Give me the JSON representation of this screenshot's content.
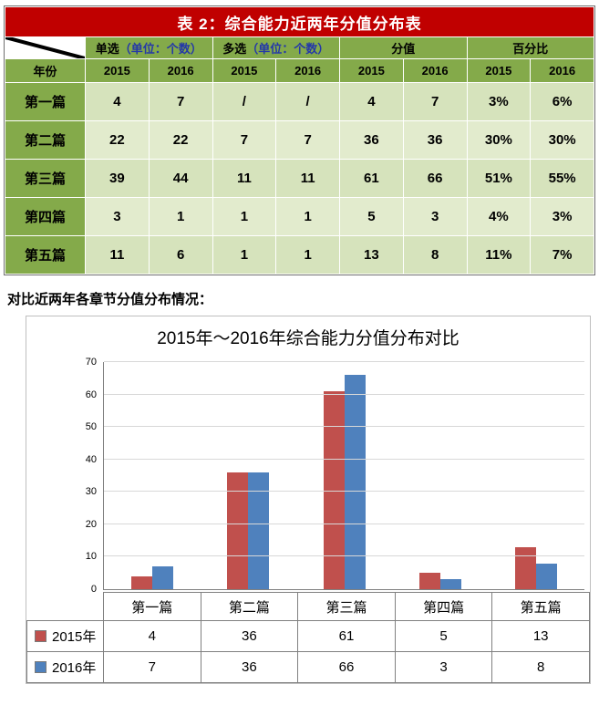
{
  "table": {
    "title": "表 2：综合能力近两年分值分布表",
    "corner_label": "年份",
    "col_groups": [
      {
        "prefix": "单选",
        "paren": "（单位：个数）"
      },
      {
        "prefix": "多选",
        "paren": "（单位：个数）"
      },
      {
        "prefix": "分值",
        "paren": ""
      },
      {
        "prefix": "百分比",
        "paren": ""
      }
    ],
    "year_headers": [
      "2015",
      "2016",
      "2015",
      "2016",
      "2015",
      "2016",
      "2015",
      "2016"
    ],
    "rows": [
      {
        "label": "第一篇",
        "values": [
          "4",
          "7",
          "/",
          "/",
          "4",
          "7",
          "3%",
          "6%"
        ]
      },
      {
        "label": "第二篇",
        "values": [
          "22",
          "22",
          "7",
          "7",
          "36",
          "36",
          "30%",
          "30%"
        ]
      },
      {
        "label": "第三篇",
        "values": [
          "39",
          "44",
          "11",
          "11",
          "61",
          "66",
          "51%",
          "55%"
        ]
      },
      {
        "label": "第四篇",
        "values": [
          "3",
          "1",
          "1",
          "1",
          "5",
          "3",
          "4%",
          "3%"
        ]
      },
      {
        "label": "第五篇",
        "values": [
          "11",
          "6",
          "1",
          "1",
          "13",
          "8",
          "11%",
          "7%"
        ]
      }
    ]
  },
  "section_text": "对比近两年各章节分值分布情况：",
  "chart_data": {
    "type": "bar",
    "title": "2015年～2016年综合能力分值分布对比",
    "categories": [
      "第一篇",
      "第二篇",
      "第三篇",
      "第四篇",
      "第五篇"
    ],
    "series": [
      {
        "name": "2015年",
        "color": "#C0504D",
        "values": [
          4,
          36,
          61,
          5,
          13
        ]
      },
      {
        "name": "2016年",
        "color": "#4F81BD",
        "values": [
          7,
          36,
          66,
          3,
          8
        ]
      }
    ],
    "xlabel": "",
    "ylabel": "",
    "ylim": [
      0,
      70
    ],
    "ytick_step": 10,
    "grid": true,
    "legend_position": "bottom-table"
  },
  "colors": {
    "title_bg": "#C00000",
    "title_fg": "#FFFFFF",
    "header_green": "#84AA4A",
    "row_odd": "#D6E3BC",
    "row_even": "#E2EBCD",
    "paren_blue": "#2438A8",
    "grid": "#D8D8D8",
    "axis": "#808080",
    "table_border": "#808080"
  }
}
